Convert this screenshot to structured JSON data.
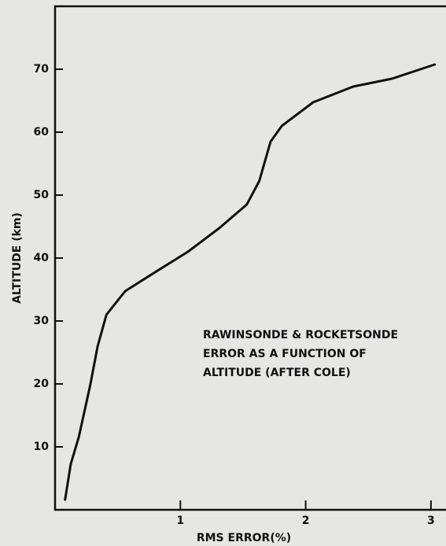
{
  "chart_data": {
    "type": "line",
    "x_label": "RMS ERROR(%)",
    "y_label": "ALTITUDE (km)",
    "annotation": [
      "RAWINSONDE & ROCKETSONDE",
      "ERROR AS A FUNCTION OF",
      "ALTITUDE (AFTER COLE)"
    ],
    "x": [
      0.08,
      0.125,
      0.19,
      0.28,
      0.34,
      0.41,
      0.56,
      0.81,
      1.06,
      1.31,
      1.53,
      1.63,
      1.72,
      1.81,
      2.06,
      2.38,
      2.69,
      3.03
    ],
    "values": [
      1.6,
      7.25,
      11.6,
      19.75,
      26,
      31,
      34.75,
      37.9,
      41,
      44.75,
      48.5,
      52.25,
      58.5,
      61,
      64.75,
      67.25,
      68.5,
      70.75
    ],
    "color": "#111111",
    "xlim": [
      0,
      3.12
    ],
    "xticks": [
      1,
      2,
      3
    ],
    "ylim": [
      0,
      80
    ],
    "yticks": [
      10,
      20,
      30,
      40,
      50,
      60,
      70
    ]
  }
}
